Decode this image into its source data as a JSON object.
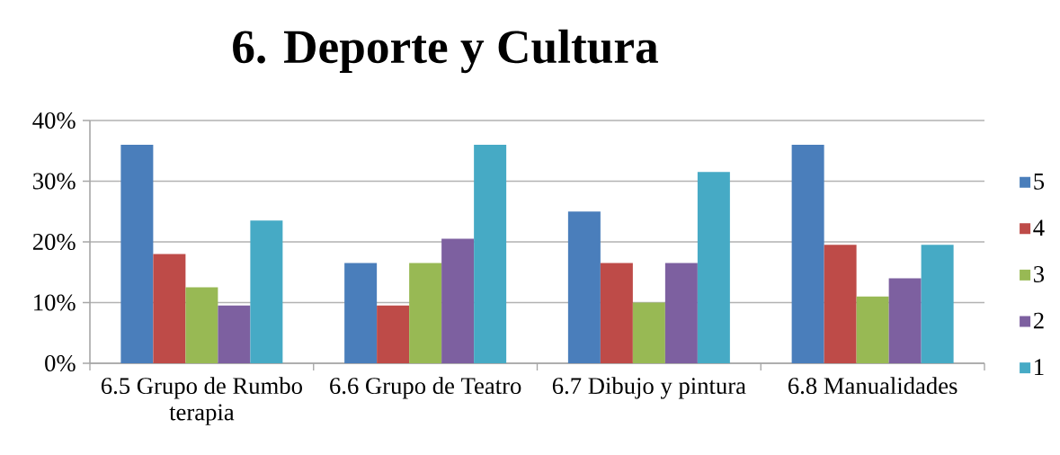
{
  "chart_data": {
    "type": "bar",
    "title": "6. Deporte y Cultura",
    "categories": [
      "6.5 Grupo de Rumbo terapia",
      "6.6 Grupo de Teatro",
      "6.7 Dibujo y pintura",
      "6.8 Manualidades"
    ],
    "series": [
      {
        "name": "5",
        "color": "#4a7ebb",
        "values": [
          36,
          16.5,
          25,
          36
        ]
      },
      {
        "name": "4",
        "color": "#be4b48",
        "values": [
          18,
          9.5,
          16.5,
          19.5
        ]
      },
      {
        "name": "3",
        "color": "#98b954",
        "values": [
          12.5,
          16.5,
          10,
          11
        ]
      },
      {
        "name": "2",
        "color": "#7d60a0",
        "values": [
          9.5,
          20.5,
          16.5,
          14
        ]
      },
      {
        "name": "1",
        "color": "#46aac5",
        "values": [
          23.5,
          36,
          31.5,
          19.5
        ]
      }
    ],
    "ylim": [
      0,
      40
    ],
    "yticks": [
      {
        "value": 0,
        "label": "0%"
      },
      {
        "value": 10,
        "label": "10%"
      },
      {
        "value": 20,
        "label": "20%"
      },
      {
        "value": 30,
        "label": "30%"
      },
      {
        "value": 40,
        "label": "40%"
      }
    ],
    "grid": "y",
    "legend": "right"
  }
}
